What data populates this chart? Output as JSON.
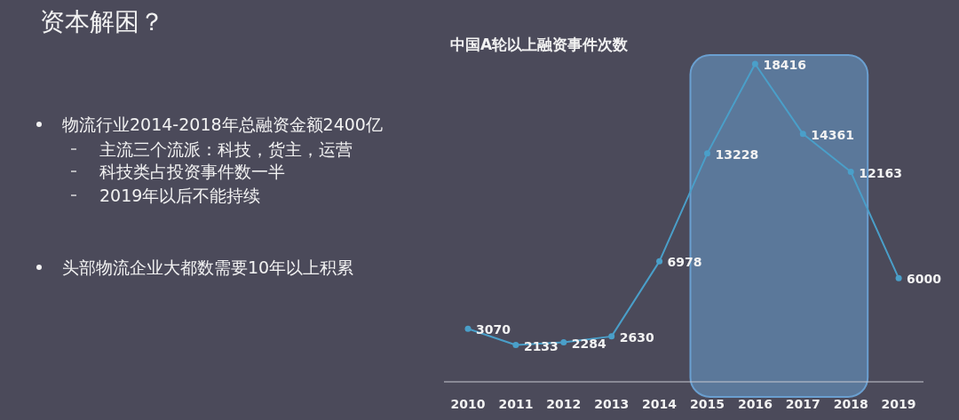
{
  "chart_data": {
    "type": "line",
    "title": "中国A轮以上融资事件次数",
    "categories": [
      "2010",
      "2011",
      "2012",
      "2013",
      "2014",
      "2015",
      "2016",
      "2017",
      "2018",
      "2019"
    ],
    "values": [
      3070,
      2133,
      2284,
      2630,
      6978,
      13228,
      18416,
      14361,
      12163,
      6000
    ],
    "color": "#4a9fc9",
    "marker": "circle",
    "data_labels": true,
    "bands": [
      {
        "axis": "x",
        "from": "2015",
        "to": "2018",
        "color": "#6a9fd0"
      }
    ],
    "annotations": [
      "资本解困？",
      "物流行业2014-2018年总融资金额2400亿",
      "主流三个流派：科技，货主，运营",
      "科技类占投资事件数一半",
      "2019年以后不能持续",
      "头部物流企业大都数需要10年以上积累"
    ]
  }
}
